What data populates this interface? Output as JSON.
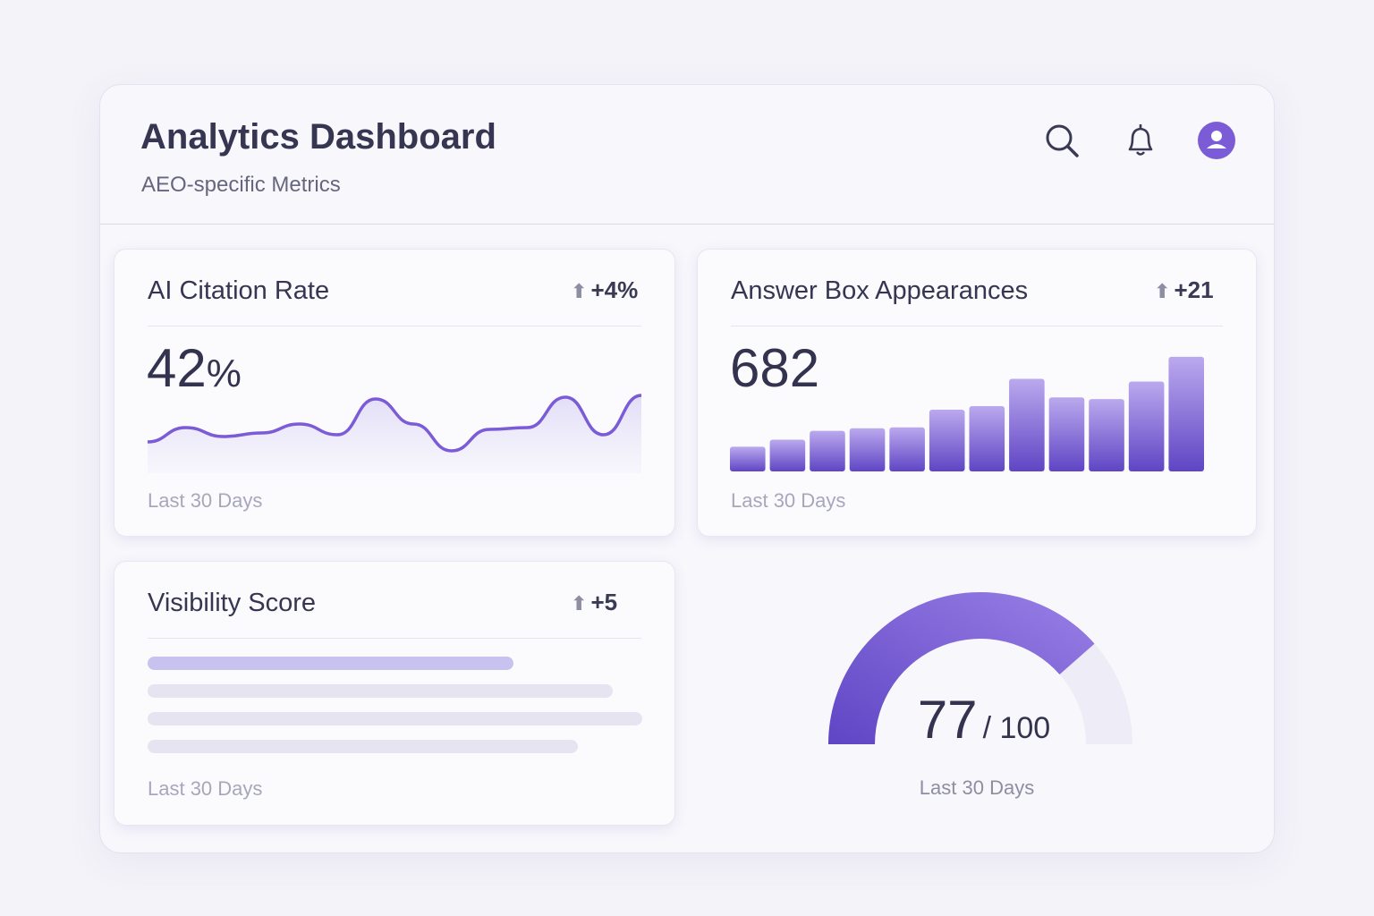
{
  "header": {
    "title": "Analytics Dashboard",
    "subtitle": "AEO-specific Metrics",
    "icons": [
      "search-icon",
      "bell-icon",
      "user-avatar-icon"
    ]
  },
  "colors": {
    "accent": "#7b5bd6",
    "accent_dark": "#5f45c4",
    "track": "#e8e6f2"
  },
  "cards": {
    "citation": {
      "title": "AI Citation Rate",
      "delta": "+4%",
      "value": "42",
      "unit": "%",
      "footer": "Last 30 Days"
    },
    "answer_box": {
      "title": "Answer Box Appearances",
      "delta": "+21",
      "value": "682",
      "footer": "Last 30 Days"
    },
    "visibility": {
      "title": "Visibility Score",
      "delta": "+5",
      "footer": "Last 30 Days",
      "bars": [
        0.74,
        0.94,
        1.0,
        0.87
      ]
    },
    "gauge": {
      "value": "77",
      "max": "/ 100",
      "footer": "Last 30 Days",
      "fraction": 0.77
    }
  },
  "chart_data": [
    {
      "type": "line",
      "series": [
        {
          "values": [
            35,
            51,
            41,
            45,
            55,
            43,
            83,
            55,
            25,
            49,
            51,
            85,
            43,
            87
          ]
        }
      ]
    },
    {
      "type": "bar",
      "values": [
        28,
        36,
        46,
        49,
        50,
        70,
        74,
        105,
        84,
        82,
        102,
        130
      ]
    }
  ]
}
